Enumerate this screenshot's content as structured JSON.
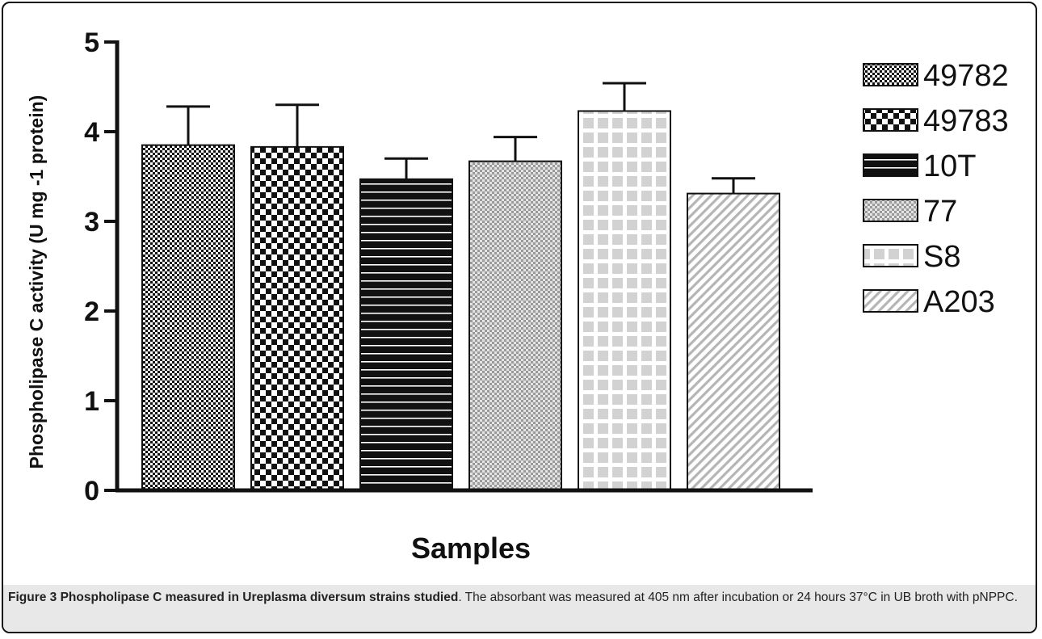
{
  "chart_data": {
    "type": "bar",
    "ylabel": "Phospholipase C activity (U mg -1 protein)",
    "xlabel": "Samples",
    "ylim": [
      0,
      5
    ],
    "yticks": [
      "0",
      "1",
      "2",
      "3",
      "4",
      "5"
    ],
    "legend_position": "right",
    "categories": [
      "49782",
      "49783",
      "10T",
      "77",
      "S8",
      "A203"
    ],
    "values": [
      3.85,
      3.83,
      3.47,
      3.67,
      4.23,
      3.31
    ],
    "errors": [
      0.43,
      0.47,
      0.23,
      0.27,
      0.31,
      0.17
    ],
    "patterns": [
      "fine-checker",
      "checker",
      "horizontal-lines",
      "fine-dots",
      "grid",
      "diagonal-hatch"
    ]
  },
  "caption": {
    "title": "Figure 3 Phospholipase C measured in Ureplasma diversum strains studied",
    "text": ". The absorbant was measured at 405 nm after incubation or 24 hours 37°C in UB broth with pNPPC."
  }
}
